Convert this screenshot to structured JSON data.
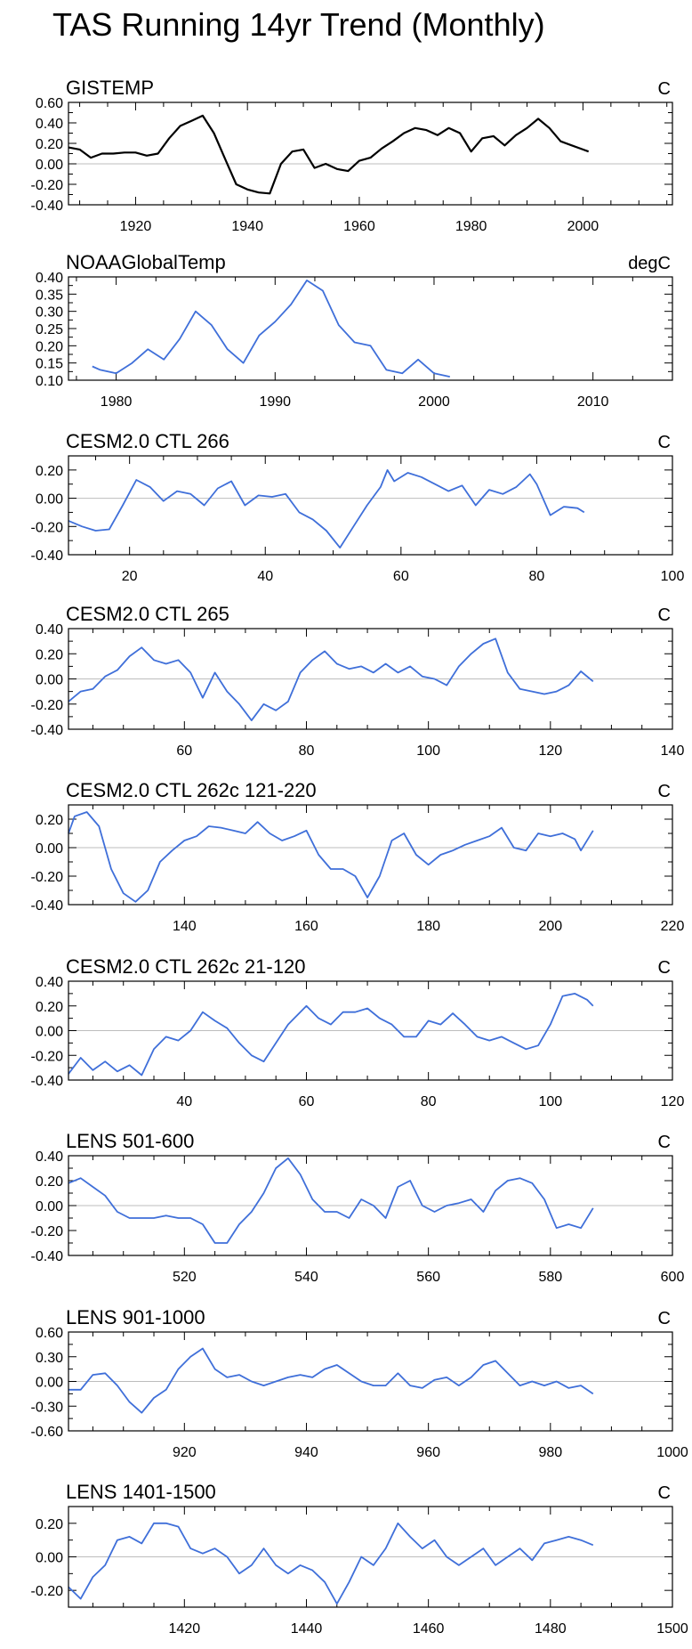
{
  "title": "TAS Running 14yr Trend (Monthly)",
  "colors": {
    "obs": "#000000",
    "model": "#3f6fd9",
    "zero": "#bdbdbd",
    "frame": "#000000"
  },
  "chart_data": [
    {
      "type": "line",
      "label": "GISTEMP",
      "units": "C",
      "color_key": "obs",
      "xlim": [
        1908,
        2016
      ],
      "ylim": [
        -0.4,
        0.6
      ],
      "xticks": [
        1920,
        1940,
        1960,
        1980,
        2000
      ],
      "yticks": [
        -0.4,
        -0.2,
        0.0,
        0.2,
        0.4,
        0.6
      ],
      "ytick_labels": [
        "-0.40",
        "-0.20",
        "0.00",
        "0.20",
        "0.40",
        "0.60"
      ],
      "zero_line": true,
      "x": [
        1908,
        1910,
        1912,
        1914,
        1916,
        1918,
        1920,
        1922,
        1924,
        1926,
        1928,
        1930,
        1932,
        1934,
        1936,
        1938,
        1940,
        1942,
        1944,
        1946,
        1948,
        1950,
        1952,
        1954,
        1956,
        1958,
        1960,
        1962,
        1964,
        1966,
        1968,
        1970,
        1972,
        1974,
        1976,
        1978,
        1980,
        1982,
        1984,
        1986,
        1988,
        1990,
        1992,
        1994,
        1996,
        1998,
        2000,
        2001
      ],
      "y": [
        0.16,
        0.14,
        0.06,
        0.1,
        0.1,
        0.11,
        0.11,
        0.08,
        0.1,
        0.25,
        0.37,
        0.42,
        0.47,
        0.3,
        0.05,
        -0.2,
        -0.25,
        -0.28,
        -0.29,
        0.0,
        0.12,
        0.14,
        -0.04,
        0.0,
        -0.05,
        -0.07,
        0.03,
        0.06,
        0.15,
        0.22,
        0.3,
        0.35,
        0.33,
        0.28,
        0.35,
        0.3,
        0.12,
        0.25,
        0.27,
        0.18,
        0.28,
        0.35,
        0.44,
        0.35,
        0.22,
        0.18,
        0.14,
        0.12
      ]
    },
    {
      "type": "line",
      "label": "NOAAGlobalTemp",
      "units": "degC",
      "color_key": "model",
      "xlim": [
        1977,
        2015
      ],
      "ylim": [
        0.1,
        0.4
      ],
      "xticks": [
        1980,
        1990,
        2000,
        2010
      ],
      "yticks": [
        0.1,
        0.15,
        0.2,
        0.25,
        0.3,
        0.35,
        0.4
      ],
      "ytick_labels": [
        "0.10",
        "0.15",
        "0.20",
        "0.25",
        "0.30",
        "0.35",
        "0.40"
      ],
      "zero_line": false,
      "x": [
        1978.5,
        1979,
        1980,
        1981,
        1982,
        1983,
        1984,
        1985,
        1986,
        1987,
        1988,
        1989,
        1990,
        1991,
        1992,
        1993,
        1994,
        1995,
        1996,
        1997,
        1998,
        1999,
        2000,
        2001
      ],
      "y": [
        0.14,
        0.13,
        0.12,
        0.15,
        0.19,
        0.16,
        0.22,
        0.3,
        0.26,
        0.19,
        0.15,
        0.23,
        0.27,
        0.32,
        0.39,
        0.36,
        0.26,
        0.21,
        0.2,
        0.13,
        0.12,
        0.16,
        0.12,
        0.11
      ]
    },
    {
      "type": "line",
      "label": "CESM2.0 CTL 266",
      "units": "C",
      "color_key": "model",
      "xlim": [
        11,
        100
      ],
      "ylim": [
        -0.4,
        0.3
      ],
      "xticks": [
        20,
        40,
        60,
        80,
        100
      ],
      "yticks": [
        -0.4,
        -0.2,
        0.0,
        0.2
      ],
      "ytick_labels": [
        "-0.40",
        "-0.20",
        "0.00",
        "0.20"
      ],
      "zero_line": true,
      "x": [
        11,
        13,
        15,
        17,
        19,
        21,
        23,
        25,
        27,
        29,
        31,
        33,
        35,
        37,
        39,
        41,
        43,
        45,
        47,
        49,
        51,
        53,
        55,
        57,
        58,
        59,
        61,
        63,
        65,
        67,
        69,
        71,
        73,
        75,
        77,
        79,
        80,
        82,
        84,
        86,
        87
      ],
      "y": [
        -0.16,
        -0.2,
        -0.23,
        -0.22,
        -0.05,
        0.13,
        0.08,
        -0.02,
        0.05,
        0.03,
        -0.05,
        0.07,
        0.12,
        -0.05,
        0.02,
        0.01,
        0.03,
        -0.1,
        -0.15,
        -0.23,
        -0.35,
        -0.2,
        -0.05,
        0.08,
        0.2,
        0.12,
        0.18,
        0.15,
        0.1,
        0.05,
        0.09,
        -0.05,
        0.06,
        0.03,
        0.08,
        0.17,
        0.1,
        -0.12,
        -0.06,
        -0.07,
        -0.1
      ]
    },
    {
      "type": "line",
      "label": "CESM2.0 CTL 265",
      "units": "C",
      "color_key": "model",
      "xlim": [
        41,
        140
      ],
      "ylim": [
        -0.4,
        0.4
      ],
      "xticks": [
        60,
        80,
        100,
        120,
        140
      ],
      "yticks": [
        -0.4,
        -0.2,
        0.0,
        0.2,
        0.4
      ],
      "ytick_labels": [
        "-0.40",
        "-0.20",
        "0.00",
        "0.20",
        "0.40"
      ],
      "zero_line": true,
      "x": [
        41,
        43,
        45,
        47,
        49,
        51,
        53,
        55,
        57,
        59,
        61,
        63,
        65,
        67,
        69,
        71,
        73,
        75,
        77,
        79,
        81,
        83,
        85,
        87,
        89,
        91,
        93,
        95,
        97,
        99,
        101,
        103,
        105,
        107,
        109,
        111,
        113,
        115,
        117,
        119,
        121,
        123,
        125,
        127
      ],
      "y": [
        -0.18,
        -0.1,
        -0.08,
        0.02,
        0.07,
        0.18,
        0.25,
        0.15,
        0.12,
        0.15,
        0.05,
        -0.15,
        0.05,
        -0.1,
        -0.2,
        -0.33,
        -0.2,
        -0.25,
        -0.18,
        0.05,
        0.15,
        0.22,
        0.12,
        0.08,
        0.1,
        0.05,
        0.12,
        0.05,
        0.1,
        0.02,
        0.0,
        -0.05,
        0.1,
        0.2,
        0.28,
        0.32,
        0.05,
        -0.08,
        -0.1,
        -0.12,
        -0.1,
        -0.05,
        0.06,
        -0.02
      ]
    },
    {
      "type": "line",
      "label": "CESM2.0 CTL 262c 121-220",
      "units": "C",
      "color_key": "model",
      "xlim": [
        121,
        220
      ],
      "ylim": [
        -0.4,
        0.3
      ],
      "xticks": [
        140,
        160,
        180,
        200,
        220
      ],
      "yticks": [
        -0.4,
        -0.2,
        0.0,
        0.2
      ],
      "ytick_labels": [
        "-0.40",
        "-0.20",
        "0.00",
        "0.20"
      ],
      "zero_line": true,
      "x": [
        121,
        122,
        124,
        126,
        128,
        130,
        132,
        134,
        136,
        138,
        140,
        142,
        144,
        146,
        148,
        150,
        152,
        154,
        156,
        158,
        160,
        162,
        164,
        166,
        168,
        170,
        172,
        174,
        176,
        178,
        180,
        182,
        184,
        186,
        188,
        190,
        192,
        194,
        196,
        198,
        200,
        202,
        204,
        205,
        207
      ],
      "y": [
        0.1,
        0.22,
        0.25,
        0.15,
        -0.15,
        -0.32,
        -0.38,
        -0.3,
        -0.1,
        -0.02,
        0.05,
        0.08,
        0.15,
        0.14,
        0.12,
        0.1,
        0.18,
        0.1,
        0.05,
        0.08,
        0.12,
        -0.05,
        -0.15,
        -0.15,
        -0.2,
        -0.35,
        -0.2,
        0.05,
        0.1,
        -0.05,
        -0.12,
        -0.05,
        -0.02,
        0.02,
        0.05,
        0.08,
        0.14,
        0.0,
        -0.02,
        0.1,
        0.08,
        0.1,
        0.06,
        -0.02,
        0.12
      ]
    },
    {
      "type": "line",
      "label": "CESM2.0 CTL 262c 21-120",
      "units": "C",
      "color_key": "model",
      "xlim": [
        21,
        120
      ],
      "ylim": [
        -0.4,
        0.4
      ],
      "xticks": [
        40,
        60,
        80,
        100,
        120
      ],
      "yticks": [
        -0.4,
        -0.2,
        0.0,
        0.2,
        0.4
      ],
      "ytick_labels": [
        "-0.40",
        "-0.20",
        "0.00",
        "0.20",
        "0.40"
      ],
      "zero_line": true,
      "x": [
        21,
        23,
        25,
        27,
        29,
        31,
        33,
        35,
        37,
        39,
        41,
        43,
        45,
        47,
        49,
        51,
        53,
        55,
        57,
        59,
        60,
        62,
        64,
        66,
        68,
        70,
        72,
        74,
        76,
        78,
        80,
        82,
        84,
        86,
        88,
        90,
        92,
        94,
        96,
        98,
        100,
        102,
        104,
        106,
        107
      ],
      "y": [
        -0.35,
        -0.22,
        -0.32,
        -0.25,
        -0.33,
        -0.28,
        -0.36,
        -0.15,
        -0.05,
        -0.08,
        0.0,
        0.15,
        0.08,
        0.02,
        -0.1,
        -0.2,
        -0.25,
        -0.1,
        0.05,
        0.15,
        0.2,
        0.1,
        0.05,
        0.15,
        0.15,
        0.18,
        0.1,
        0.05,
        -0.05,
        -0.05,
        0.08,
        0.05,
        0.14,
        0.05,
        -0.05,
        -0.08,
        -0.05,
        -0.1,
        -0.15,
        -0.12,
        0.05,
        0.28,
        0.3,
        0.25,
        0.2
      ]
    },
    {
      "type": "line",
      "label": "LENS 501-600",
      "units": "C",
      "color_key": "model",
      "xlim": [
        501,
        600
      ],
      "ylim": [
        -0.4,
        0.4
      ],
      "xticks": [
        520,
        540,
        560,
        580,
        600
      ],
      "yticks": [
        -0.4,
        -0.2,
        0.0,
        0.2,
        0.4
      ],
      "ytick_labels": [
        "-0.40",
        "-0.20",
        "0.00",
        "0.20",
        "0.40"
      ],
      "zero_line": true,
      "x": [
        501,
        503,
        505,
        507,
        509,
        511,
        513,
        515,
        517,
        519,
        521,
        523,
        525,
        527,
        529,
        531,
        533,
        535,
        537,
        539,
        541,
        543,
        545,
        547,
        549,
        551,
        553,
        555,
        557,
        559,
        561,
        563,
        565,
        567,
        569,
        571,
        573,
        575,
        577,
        579,
        581,
        583,
        585,
        587
      ],
      "y": [
        0.18,
        0.22,
        0.15,
        0.08,
        -0.05,
        -0.1,
        -0.1,
        -0.1,
        -0.08,
        -0.1,
        -0.1,
        -0.15,
        -0.3,
        -0.3,
        -0.15,
        -0.05,
        0.1,
        0.3,
        0.38,
        0.25,
        0.05,
        -0.05,
        -0.05,
        -0.1,
        0.05,
        0.0,
        -0.1,
        0.15,
        0.2,
        0.0,
        -0.05,
        0.0,
        0.02,
        0.05,
        -0.05,
        0.12,
        0.2,
        0.22,
        0.18,
        0.05,
        -0.18,
        -0.15,
        -0.18,
        -0.02
      ]
    },
    {
      "type": "line",
      "label": "LENS 901-1000",
      "units": "C",
      "color_key": "model",
      "xlim": [
        901,
        1000
      ],
      "ylim": [
        -0.6,
        0.6
      ],
      "xticks": [
        920,
        940,
        960,
        980,
        1000
      ],
      "yticks": [
        -0.6,
        -0.3,
        0.0,
        0.3,
        0.6
      ],
      "ytick_labels": [
        "-0.60",
        "-0.30",
        "0.00",
        "0.30",
        "0.60"
      ],
      "zero_line": true,
      "x": [
        901,
        903,
        905,
        907,
        909,
        911,
        913,
        915,
        917,
        919,
        921,
        923,
        925,
        927,
        929,
        931,
        933,
        935,
        937,
        939,
        941,
        943,
        945,
        947,
        949,
        951,
        953,
        955,
        957,
        959,
        961,
        963,
        965,
        967,
        969,
        971,
        973,
        975,
        977,
        979,
        981,
        983,
        985,
        987
      ],
      "y": [
        -0.1,
        -0.1,
        0.08,
        0.1,
        -0.05,
        -0.25,
        -0.38,
        -0.2,
        -0.1,
        0.15,
        0.3,
        0.4,
        0.15,
        0.05,
        0.08,
        0.0,
        -0.05,
        0.0,
        0.05,
        0.08,
        0.05,
        0.15,
        0.2,
        0.1,
        0.0,
        -0.05,
        -0.05,
        0.1,
        -0.05,
        -0.08,
        0.02,
        0.05,
        -0.05,
        0.05,
        0.2,
        0.25,
        0.1,
        -0.05,
        0.0,
        -0.05,
        0.0,
        -0.08,
        -0.05,
        -0.15
      ]
    },
    {
      "type": "line",
      "label": "LENS 1401-1500",
      "units": "C",
      "color_key": "model",
      "xlim": [
        1401,
        1500
      ],
      "ylim": [
        -0.3,
        0.3
      ],
      "xticks": [
        1420,
        1440,
        1460,
        1480,
        1500
      ],
      "yticks": [
        -0.2,
        0.0,
        0.2
      ],
      "ytick_labels": [
        "-0.20",
        "0.00",
        "0.20"
      ],
      "zero_line": true,
      "x": [
        1401,
        1403,
        1405,
        1407,
        1409,
        1411,
        1413,
        1415,
        1417,
        1419,
        1421,
        1423,
        1425,
        1427,
        1429,
        1431,
        1433,
        1435,
        1437,
        1439,
        1441,
        1443,
        1445,
        1447,
        1449,
        1451,
        1453,
        1455,
        1457,
        1459,
        1461,
        1463,
        1465,
        1467,
        1469,
        1471,
        1473,
        1475,
        1477,
        1479,
        1481,
        1483,
        1485,
        1487
      ],
      "y": [
        -0.18,
        -0.25,
        -0.12,
        -0.05,
        0.1,
        0.12,
        0.08,
        0.2,
        0.2,
        0.18,
        0.05,
        0.02,
        0.05,
        0.0,
        -0.1,
        -0.05,
        0.05,
        -0.05,
        -0.1,
        -0.05,
        -0.08,
        -0.15,
        -0.28,
        -0.15,
        0.0,
        -0.05,
        0.05,
        0.2,
        0.12,
        0.05,
        0.1,
        0.0,
        -0.05,
        0.0,
        0.05,
        -0.05,
        0.0,
        0.05,
        -0.02,
        0.08,
        0.1,
        0.12,
        0.1,
        0.07
      ]
    }
  ]
}
